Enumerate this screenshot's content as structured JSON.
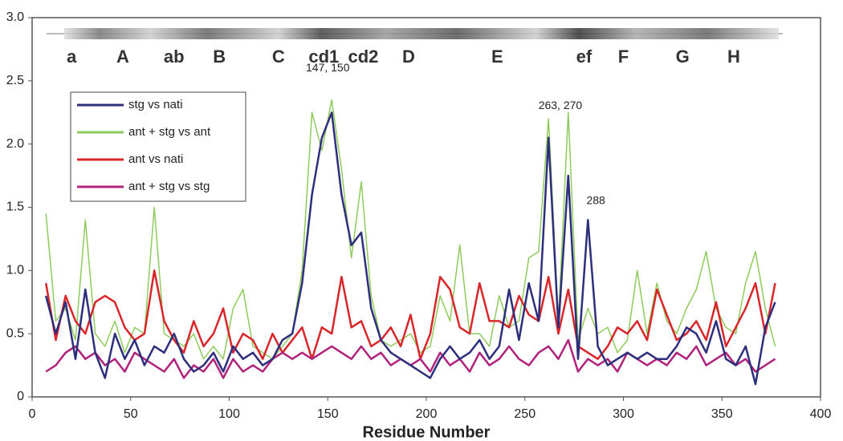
{
  "chart_data": {
    "type": "line",
    "x_label": "Residue Number",
    "xlim": [
      0,
      400
    ],
    "xticks": [
      0,
      50,
      100,
      150,
      200,
      250,
      300,
      350,
      400
    ],
    "ylim": [
      0,
      3
    ],
    "yticks": [
      0,
      0.5,
      {
        "value": 1,
        "label": "1.0"
      },
      1.5,
      {
        "value": 2,
        "label": "2.0"
      },
      2.5,
      {
        "value": 3,
        "label": "3.0"
      }
    ],
    "grid": false,
    "legend": "upper left",
    "x": [
      7,
      12,
      17,
      22,
      27,
      32,
      37,
      42,
      47,
      52,
      57,
      62,
      67,
      72,
      77,
      82,
      87,
      92,
      97,
      102,
      107,
      112,
      117,
      122,
      127,
      132,
      137,
      142,
      147,
      152,
      157,
      162,
      167,
      172,
      177,
      182,
      187,
      192,
      197,
      202,
      207,
      212,
      217,
      222,
      227,
      232,
      237,
      242,
      247,
      252,
      257,
      262,
      267,
      272,
      277,
      282,
      287,
      292,
      297,
      302,
      307,
      312,
      317,
      322,
      327,
      332,
      337,
      342,
      347,
      352,
      357,
      362,
      367,
      372,
      377
    ],
    "series": [
      {
        "name": "stg vs nati",
        "color": "#2d2f7c",
        "values": [
          0.8,
          0.5,
          0.75,
          0.3,
          0.85,
          0.35,
          0.15,
          0.5,
          0.3,
          0.45,
          0.25,
          0.4,
          0.35,
          0.5,
          0.3,
          0.2,
          0.25,
          0.35,
          0.2,
          0.4,
          0.3,
          0.35,
          0.25,
          0.3,
          0.45,
          0.5,
          0.9,
          1.6,
          2.05,
          2.25,
          1.6,
          1.2,
          1.3,
          0.7,
          0.45,
          0.35,
          0.3,
          0.25,
          0.2,
          0.15,
          0.3,
          0.4,
          0.3,
          0.35,
          0.45,
          0.3,
          0.4,
          0.85,
          0.45,
          0.9,
          0.6,
          2.05,
          0.55,
          1.75,
          0.3,
          1.4,
          0.4,
          0.25,
          0.3,
          0.35,
          0.3,
          0.35,
          0.3,
          0.3,
          0.4,
          0.55,
          0.5,
          0.35,
          0.6,
          0.3,
          0.25,
          0.4,
          0.1,
          0.55,
          0.75
        ]
      },
      {
        "name": "ant + stg vs ant",
        "color": "#8fcb5c",
        "values": [
          1.45,
          0.6,
          0.7,
          0.45,
          1.4,
          0.5,
          0.4,
          0.6,
          0.35,
          0.55,
          0.5,
          1.5,
          0.5,
          0.45,
          0.4,
          0.5,
          0.3,
          0.4,
          0.3,
          0.7,
          0.85,
          0.4,
          0.35,
          0.3,
          0.4,
          0.5,
          1.0,
          2.25,
          1.95,
          2.35,
          1.8,
          1.1,
          1.7,
          0.8,
          0.45,
          0.4,
          0.45,
          0.5,
          0.35,
          0.4,
          0.8,
          0.6,
          1.2,
          0.5,
          0.5,
          0.4,
          0.8,
          0.55,
          0.6,
          1.1,
          1.15,
          2.2,
          0.6,
          2.25,
          0.45,
          0.7,
          0.5,
          0.55,
          0.35,
          0.45,
          1.0,
          0.5,
          0.9,
          0.6,
          0.5,
          0.7,
          0.85,
          1.15,
          0.7,
          0.55,
          0.5,
          0.9,
          1.15,
          0.7,
          0.4
        ]
      },
      {
        "name": "ant vs nati",
        "color": "#d8262a",
        "values": [
          0.9,
          0.45,
          0.8,
          0.6,
          0.5,
          0.75,
          0.8,
          0.75,
          0.55,
          0.45,
          0.5,
          1.0,
          0.6,
          0.45,
          0.35,
          0.6,
          0.4,
          0.5,
          0.7,
          0.35,
          0.5,
          0.45,
          0.3,
          0.5,
          0.35,
          0.45,
          0.55,
          0.3,
          0.55,
          0.5,
          0.95,
          0.55,
          0.6,
          0.4,
          0.45,
          0.55,
          0.4,
          0.65,
          0.3,
          0.5,
          0.95,
          0.85,
          0.55,
          0.5,
          0.9,
          0.6,
          0.6,
          0.55,
          0.8,
          0.65,
          0.6,
          0.95,
          0.5,
          0.85,
          0.4,
          0.35,
          0.3,
          0.4,
          0.55,
          0.5,
          0.6,
          0.45,
          0.85,
          0.65,
          0.45,
          0.5,
          0.6,
          0.45,
          0.75,
          0.4,
          0.55,
          0.7,
          0.9,
          0.5,
          0.9
        ]
      },
      {
        "name": "ant + stg vs stg",
        "color": "#b0237c",
        "values": [
          0.2,
          0.25,
          0.35,
          0.4,
          0.3,
          0.35,
          0.25,
          0.3,
          0.2,
          0.35,
          0.3,
          0.25,
          0.2,
          0.3,
          0.15,
          0.25,
          0.2,
          0.3,
          0.15,
          0.3,
          0.2,
          0.25,
          0.2,
          0.3,
          0.35,
          0.3,
          0.35,
          0.3,
          0.35,
          0.4,
          0.35,
          0.3,
          0.4,
          0.3,
          0.35,
          0.25,
          0.3,
          0.25,
          0.3,
          0.2,
          0.35,
          0.25,
          0.3,
          0.2,
          0.35,
          0.25,
          0.3,
          0.4,
          0.3,
          0.25,
          0.35,
          0.4,
          0.3,
          0.45,
          0.2,
          0.3,
          0.25,
          0.3,
          0.2,
          0.35,
          0.3,
          0.25,
          0.3,
          0.25,
          0.35,
          0.3,
          0.4,
          0.25,
          0.3,
          0.35,
          0.25,
          0.3,
          0.2,
          0.25,
          0.3
        ]
      }
    ],
    "structure_labels": [
      {
        "text": "a",
        "x": 20
      },
      {
        "text": "A",
        "x": 46
      },
      {
        "text": "ab",
        "x": 72
      },
      {
        "text": "B",
        "x": 95
      },
      {
        "text": "C",
        "x": 125
      },
      {
        "text": "cd1",
        "x": 148
      },
      {
        "text": "cd2",
        "x": 168
      },
      {
        "text": "D",
        "x": 191
      },
      {
        "text": "E",
        "x": 236
      },
      {
        "text": "ef",
        "x": 280
      },
      {
        "text": "F",
        "x": 300
      },
      {
        "text": "G",
        "x": 330
      },
      {
        "text": "H",
        "x": 356
      }
    ],
    "annotations": [
      {
        "text": "147, 150",
        "x": 150,
        "y": 2.6
      },
      {
        "text": "263, 270",
        "x": 268,
        "y": 2.3
      },
      {
        "text": "288",
        "x": 286,
        "y": 1.55
      }
    ]
  }
}
